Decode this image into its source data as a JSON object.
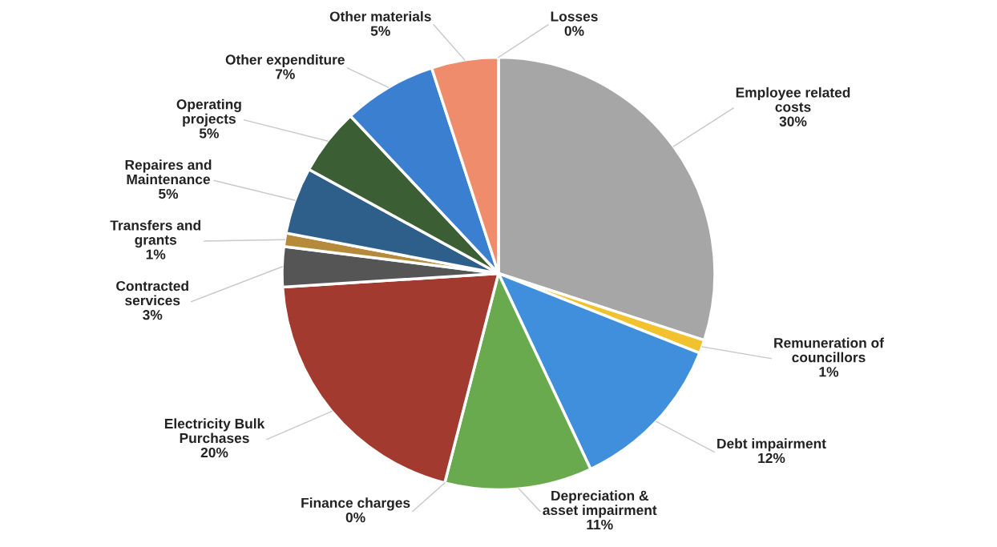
{
  "chart_data": {
    "type": "pie",
    "categories": [
      "Employee related costs",
      "Remuneration of councillors",
      "Debt impairment",
      "Depreciation & asset impairment",
      "Finance charges",
      "Electricity Bulk Purchases",
      "Contracted services",
      "Transfers and grants",
      "Repaires and Maintenance",
      "Operating projects",
      "Other expenditure",
      "Other materials",
      "Losses"
    ],
    "values": [
      30,
      1,
      12,
      11,
      0,
      20,
      3,
      1,
      5,
      5,
      7,
      5,
      0
    ],
    "colors": [
      "#a6a6a6",
      "#f2c12e",
      "#3f8fdc",
      "#6aaa4f",
      "#4a6a8a",
      "#a33a30",
      "#555555",
      "#b58a3a",
      "#2e5f8a",
      "#3b5e35",
      "#3a7fd0",
      "#ef8c6c",
      "#aaaaaa"
    ],
    "value_labels": [
      "30%",
      "1%",
      "12%",
      "11%",
      "0%",
      "20%",
      "3%",
      "1%",
      "5%",
      "5%",
      "7%",
      "5%",
      "0%"
    ]
  }
}
